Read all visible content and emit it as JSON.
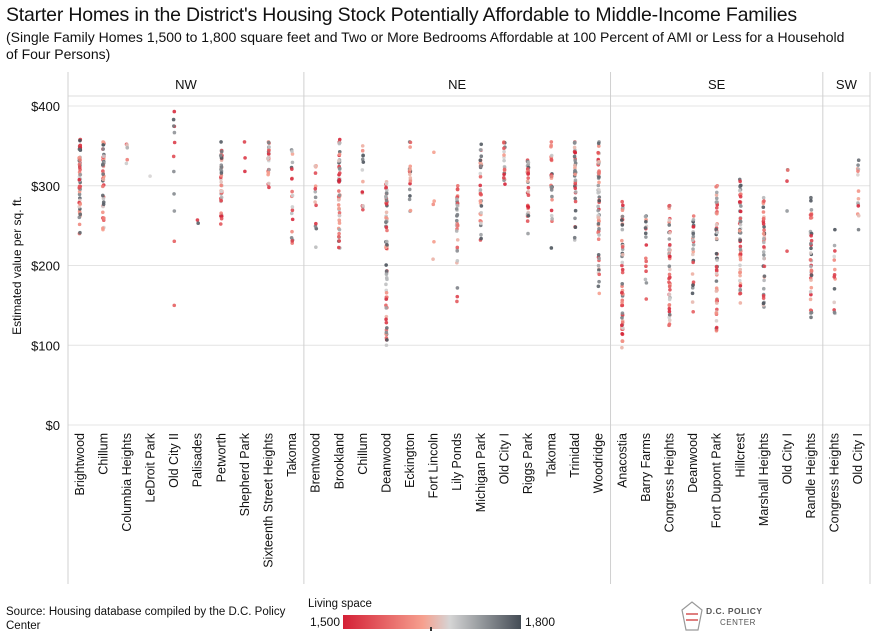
{
  "title": "Starter Homes in the District's Housing Stock Potentially Affordable to Middle-Income Families",
  "subtitle": "(Single Family Homes 1,500 to 1,800 square feet and Two or More Bedrooms Affordable at 100 Percent of AMI or Less for a Household of Four Persons)",
  "source": "Source: Housing database compiled by the D.C. Policy Center",
  "legend": {
    "title": "Living space",
    "min_label": "1,500",
    "max_label": "1,800",
    "color_low": "#d42036",
    "color_mid_low": "#f6a08f",
    "color_mid": "#d5d5d5",
    "color_high": "#444c55"
  },
  "logo": {
    "line1": "D.C. POLICY",
    "line2": "CENTER"
  },
  "chart_data": {
    "type": "scatter",
    "title": "Starter Homes in the District's Housing Stock Potentially Affordable to Middle-Income Families",
    "ylabel": "Estimated value per sq. ft.",
    "ylim": [
      0,
      400
    ],
    "yticks": [
      0,
      100,
      200,
      300,
      400
    ],
    "ytick_labels": [
      "$0",
      "$100",
      "$200",
      "$300",
      "$400"
    ],
    "grid": true,
    "color_encoding": "Living space (1,500 to 1,800 sq. ft.)",
    "panels": [
      {
        "name": "NW",
        "neighborhoods": [
          {
            "name": "Brightwood",
            "min": 240,
            "max": 358,
            "count": 60
          },
          {
            "name": "Chillum",
            "min": 245,
            "max": 355,
            "count": 50
          },
          {
            "name": "Columbia Heights",
            "min": 328,
            "max": 352,
            "count": 6
          },
          {
            "name": "LeDroit Park",
            "min": 312,
            "max": 312,
            "count": 1
          },
          {
            "name": "Old City II",
            "min": 150,
            "max": 393,
            "count": 12
          },
          {
            "name": "Palisades",
            "min": 253,
            "max": 257,
            "count": 2
          },
          {
            "name": "Petworth",
            "min": 252,
            "max": 355,
            "count": 45
          },
          {
            "name": "Shepherd Park",
            "min": 318,
            "max": 355,
            "count": 3
          },
          {
            "name": "Sixteenth Street Heights",
            "min": 298,
            "max": 355,
            "count": 25
          },
          {
            "name": "Takoma",
            "min": 228,
            "max": 345,
            "count": 20
          }
        ]
      },
      {
        "name": "NE",
        "neighborhoods": [
          {
            "name": "Brentwood",
            "min": 223,
            "max": 325,
            "count": 14
          },
          {
            "name": "Brookland",
            "min": 222,
            "max": 358,
            "count": 55
          },
          {
            "name": "Chillum",
            "min": 270,
            "max": 350,
            "count": 14
          },
          {
            "name": "Deanwood",
            "min": 100,
            "max": 305,
            "count": 70
          },
          {
            "name": "Eckington",
            "min": 268,
            "max": 355,
            "count": 20
          },
          {
            "name": "Fort Lincoln",
            "min": 208,
            "max": 342,
            "count": 5
          },
          {
            "name": "Lily Ponds",
            "min": 155,
            "max": 300,
            "count": 35
          },
          {
            "name": "Michigan Park",
            "min": 232,
            "max": 352,
            "count": 35
          },
          {
            "name": "Old City I",
            "min": 302,
            "max": 355,
            "count": 20
          },
          {
            "name": "Riggs Park",
            "min": 240,
            "max": 332,
            "count": 35
          },
          {
            "name": "Takoma",
            "min": 222,
            "max": 355,
            "count": 25
          },
          {
            "name": "Trinidad",
            "min": 232,
            "max": 355,
            "count": 40
          },
          {
            "name": "Woodridge",
            "min": 165,
            "max": 355,
            "count": 60
          }
        ]
      },
      {
        "name": "SE",
        "neighborhoods": [
          {
            "name": "Anacostia",
            "min": 97,
            "max": 280,
            "count": 55
          },
          {
            "name": "Barry Farms",
            "min": 158,
            "max": 262,
            "count": 18
          },
          {
            "name": "Congress Heights",
            "min": 125,
            "max": 275,
            "count": 50
          },
          {
            "name": "Deanwood",
            "min": 142,
            "max": 262,
            "count": 30
          },
          {
            "name": "Fort Dupont Park",
            "min": 118,
            "max": 300,
            "count": 55
          },
          {
            "name": "Hillcrest",
            "min": 153,
            "max": 308,
            "count": 55
          },
          {
            "name": "Marshall Heights",
            "min": 148,
            "max": 285,
            "count": 40
          },
          {
            "name": "Old City I",
            "min": 218,
            "max": 320,
            "count": 5
          },
          {
            "name": "Randle Heights",
            "min": 135,
            "max": 285,
            "count": 40
          }
        ]
      },
      {
        "name": "SW",
        "neighborhoods": [
          {
            "name": "Congress Heights",
            "min": 140,
            "max": 245,
            "count": 14
          },
          {
            "name": "Old City I",
            "min": 245,
            "max": 332,
            "count": 14
          }
        ]
      }
    ]
  }
}
